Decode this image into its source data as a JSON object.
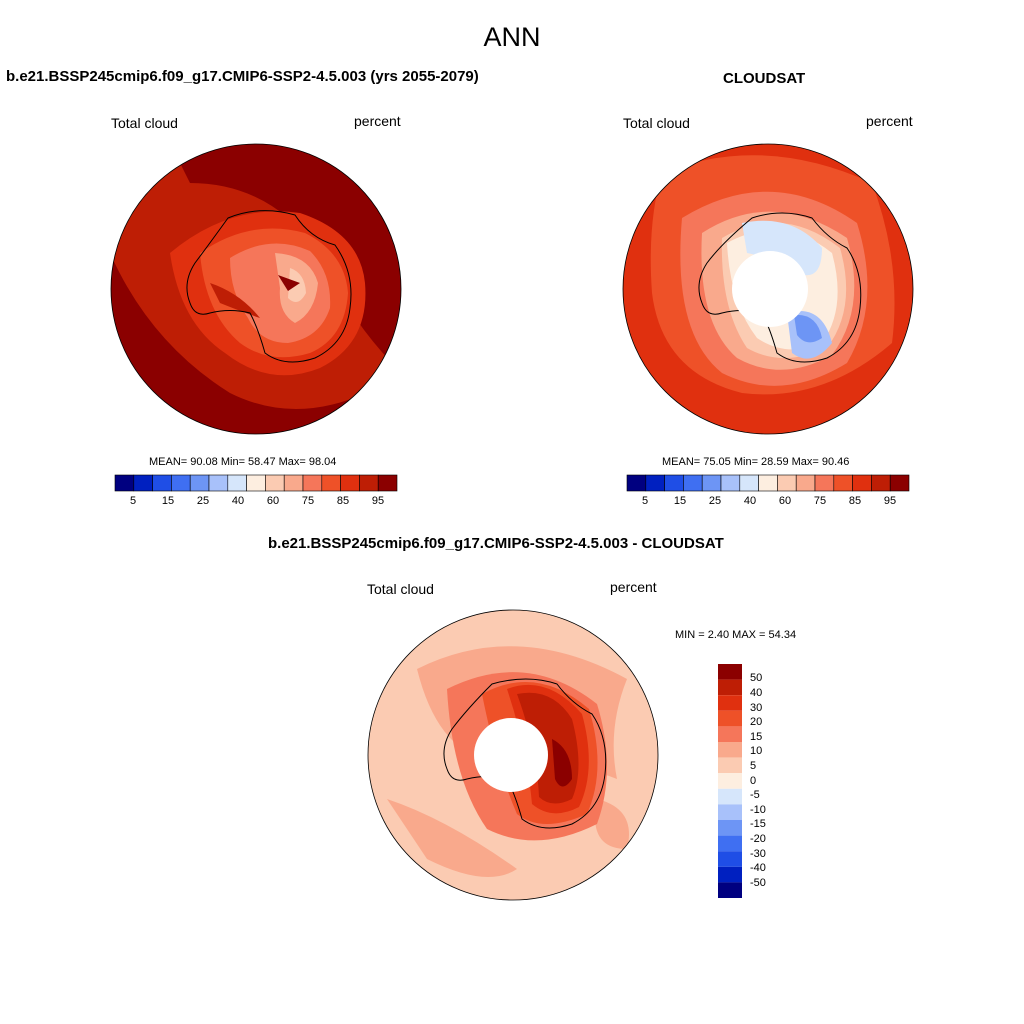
{
  "figure": {
    "title": "ANN",
    "colors": {
      "cmap_abs": [
        "#000080",
        "#0020c0",
        "#1f4ee6",
        "#3f6ff2",
        "#6d95f5",
        "#a8c1fa",
        "#d6e6fb",
        "#fdeee0",
        "#fbcbb2",
        "#f9a98c",
        "#f5765a",
        "#ee5128",
        "#e0300f",
        "#be1e05",
        "#8b0000"
      ],
      "cmap_diff": [
        "#8b0000",
        "#be1e05",
        "#e0300f",
        "#ee5128",
        "#f5765a",
        "#f9a98c",
        "#fbcbb2",
        "#fdeee0",
        "#d6e6fb",
        "#a8c1fa",
        "#6d95f5",
        "#3f6ff2",
        "#1f4ee6",
        "#0020c0",
        "#000080"
      ]
    }
  },
  "panels": [
    {
      "id": "model",
      "title": "b.e21.BSSP245cmip6.f09_g17.CMIP6-SSP2-4.5.003 (yrs 2055-2079)",
      "left_label": "Total cloud",
      "right_label": "percent",
      "stats": "MEAN=  90.08  Min=  58.47  Max=  98.04",
      "colorbar_ticks": [
        "5",
        "15",
        "25",
        "40",
        "60",
        "75",
        "85",
        "95"
      ]
    },
    {
      "id": "obs",
      "title": "CLOUDSAT",
      "left_label": "Total cloud",
      "right_label": "percent",
      "stats": "MEAN=  75.05  Min=  28.59  Max=  90.46",
      "colorbar_ticks": [
        "5",
        "15",
        "25",
        "40",
        "60",
        "75",
        "85",
        "95"
      ]
    },
    {
      "id": "diff",
      "title": "b.e21.BSSP245cmip6.f09_g17.CMIP6-SSP2-4.5.003 - CLOUDSAT",
      "left_label": "Total cloud",
      "right_label": "percent",
      "stats": "MIN =   2.40 MAX =  54.34",
      "colorbar_ticks": [
        "50",
        "40",
        "30",
        "20",
        "15",
        "10",
        "5",
        "0",
        "-5",
        "-10",
        "-15",
        "-20",
        "-30",
        "-40",
        "-50"
      ]
    }
  ]
}
